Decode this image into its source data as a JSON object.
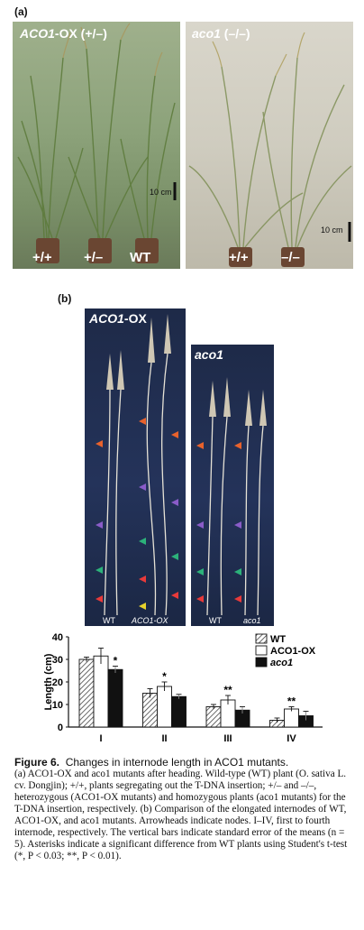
{
  "panel_a": {
    "label": "(a)",
    "left_photo": {
      "title_gene": "ACO1",
      "title_rest": "-OX (+/–)",
      "plant_labels": [
        "+/+",
        "+/–",
        "WT"
      ],
      "scale_label": "10 cm"
    },
    "right_photo": {
      "title_gene": "aco1",
      "title_rest": " (–/–)",
      "plant_labels": [
        "+/+",
        "–/–"
      ],
      "scale_label": "10 cm"
    }
  },
  "panel_b": {
    "label": "(b)",
    "left_photo": {
      "title_gene": "ACO1",
      "title_rest": "-OX",
      "bottom_labels": [
        "WT",
        "ACO1-OX"
      ]
    },
    "right_photo": {
      "title_gene": "aco1",
      "bottom_labels": [
        "WT",
        "aco1"
      ]
    },
    "arrow_colors": {
      "orange": "#e8622c",
      "purple": "#8a5cc8",
      "green": "#2cb27a",
      "red": "#e83a3a",
      "yellow": "#e8d22c"
    }
  },
  "chart_data": {
    "type": "bar",
    "ylabel": "Length (cm)",
    "xlabel": "",
    "ylim": [
      0,
      40
    ],
    "yticks": [
      "0",
      "10",
      "20",
      "30",
      "40"
    ],
    "categories": [
      "I",
      "II",
      "III",
      "IV"
    ],
    "legend": [
      "WT",
      "ACO1-OX",
      "aco1"
    ],
    "legend_position": "top-right",
    "series": [
      {
        "name": "WT",
        "values": [
          30,
          15,
          9,
          3
        ],
        "errors": [
          1,
          2,
          1,
          1
        ],
        "fill": "hatched"
      },
      {
        "name": "ACO1-OX",
        "values": [
          31.5,
          18,
          12,
          8
        ],
        "errors": [
          3.5,
          2,
          2,
          1
        ],
        "fill": "#ffffff"
      },
      {
        "name": "aco1",
        "values": [
          25.5,
          13.5,
          7.5,
          5
        ],
        "errors": [
          1.5,
          1,
          1.5,
          2
        ],
        "fill": "#111111"
      }
    ],
    "significance": [
      {
        "category": "I",
        "series": "aco1",
        "mark": "*"
      },
      {
        "category": "II",
        "series": "ACO1-OX",
        "mark": "*"
      },
      {
        "category": "III",
        "series": "ACO1-OX",
        "mark": "**"
      },
      {
        "category": "IV",
        "series": "ACO1-OX",
        "mark": "**"
      }
    ]
  },
  "caption": {
    "figure_label": "Figure 6.",
    "title": "Changes in internode length in ACO1 mutants.",
    "body": "(a) ACO1-OX and aco1 mutants after heading. Wild-type (WT) plant (O. sativa L. cv. Dongjin); +/+, plants segregating out the T-DNA insertion; +/– and –/–, heterozygous (ACO1-OX mutants) and homozygous plants (aco1 mutants) for the T-DNA insertion, respectively. (b) Comparison of the elongated internodes of WT, ACO1-OX, and aco1 mutants. Arrowheads indicate nodes. I–IV, first to fourth internode, respectively. The vertical bars indicate standard error of the means (n = 5). Asterisks indicate a significant difference from WT plants using Student's t-test (*, P < 0.03; **, P < 0.01)."
  }
}
